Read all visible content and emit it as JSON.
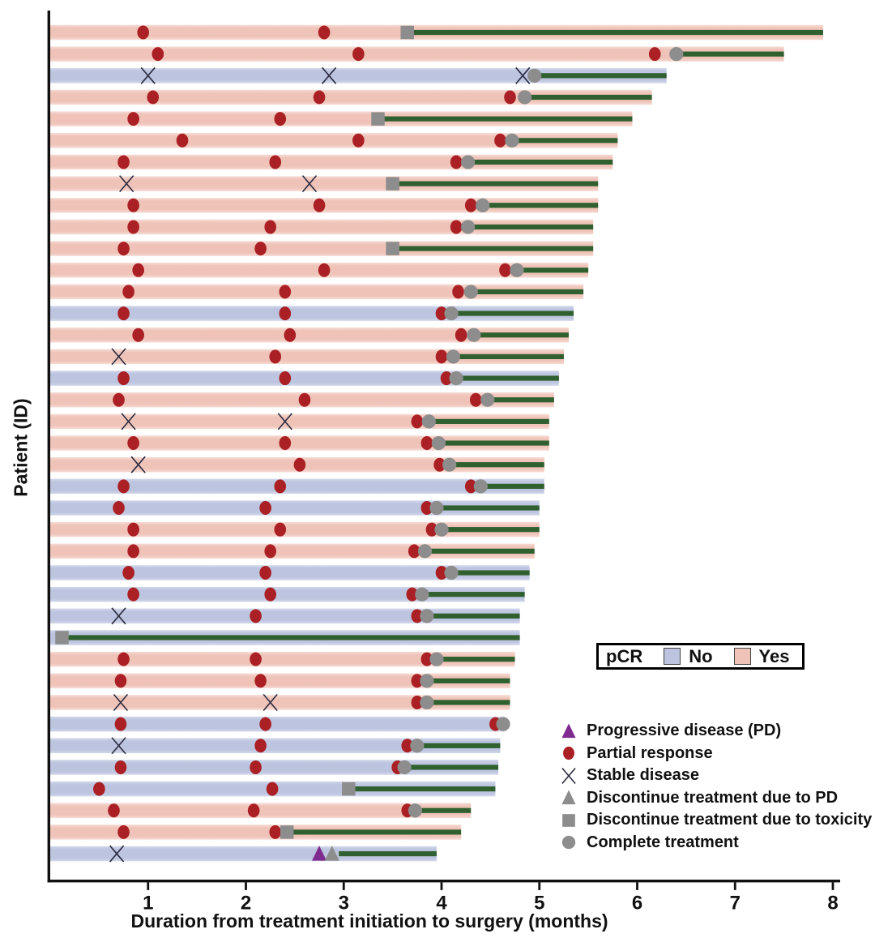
{
  "figure": {
    "x_axis": {
      "label": "Duration from treatment initiation to surgery (months)",
      "ticks": [
        1,
        2,
        3,
        4,
        5,
        6,
        7,
        8
      ],
      "min": 0,
      "max": 8
    },
    "y_axis": {
      "label": "Patient (ID)"
    }
  },
  "pcr_legend": {
    "title": "pCR",
    "no_label": "No",
    "yes_label": "Yes"
  },
  "marker_legend": [
    {
      "type": "pd",
      "label": "Progressive disease (PD)"
    },
    {
      "type": "pr",
      "label": "Partial response"
    },
    {
      "type": "sd",
      "label": "Stable disease"
    },
    {
      "type": "dpd",
      "label": "Discontinue treatment due to PD"
    },
    {
      "type": "dtox",
      "label": "Discontinue treatment due to toxicity"
    },
    {
      "type": "ct",
      "label": "Complete treatment"
    }
  ],
  "colors": {
    "pcr_yes": "#efc3b8",
    "pcr_yes_edge": "#f6dcd5",
    "pcr_no": "#bcc4df",
    "pcr_no_edge": "#d2d8ea",
    "partial_response": "#aa2024",
    "gray_marker": "#8d8d8d",
    "progressive": "#7e2a8e",
    "stable_x": "#2b2b40",
    "post_line": "#30602f",
    "axis": "#111111"
  },
  "chart_data": {
    "type": "bar",
    "orientation": "horizontal-swimmer",
    "x_unit": "months",
    "xlim": [
      0,
      8
    ],
    "title": "",
    "xlabel": "Duration from treatment initiation to surgery (months)",
    "ylabel": "Patient (ID)",
    "event_types": {
      "pd": "Progressive disease (PD)",
      "pr": "Partial response",
      "sd": "Stable disease",
      "dpd": "Discontinue treatment due to PD",
      "dtox": "Discontinue treatment due to toxicity",
      "ct": "Complete treatment"
    },
    "patients": [
      {
        "pcr": "Yes",
        "end": 7.9,
        "events": [
          [
            "pr",
            0.95
          ],
          [
            "pr",
            2.8
          ],
          [
            "dtox",
            3.65
          ]
        ],
        "line": [
          3.65,
          7.9
        ]
      },
      {
        "pcr": "Yes",
        "end": 7.5,
        "events": [
          [
            "pr",
            1.1
          ],
          [
            "pr",
            3.15
          ],
          [
            "pr",
            6.18
          ],
          [
            "ct",
            6.4
          ]
        ],
        "line": [
          6.4,
          7.5
        ]
      },
      {
        "pcr": "No",
        "end": 6.3,
        "events": [
          [
            "sd",
            1.0
          ],
          [
            "sd",
            2.85
          ],
          [
            "sd",
            4.83
          ],
          [
            "ct",
            4.95
          ]
        ],
        "line": [
          4.95,
          6.3
        ]
      },
      {
        "pcr": "Yes",
        "end": 6.15,
        "events": [
          [
            "pr",
            1.05
          ],
          [
            "pr",
            2.75
          ],
          [
            "pr",
            4.7
          ],
          [
            "ct",
            4.85
          ]
        ],
        "line": [
          4.85,
          6.15
        ]
      },
      {
        "pcr": "Yes",
        "end": 5.95,
        "events": [
          [
            "pr",
            0.85
          ],
          [
            "pr",
            2.35
          ],
          [
            "dtox",
            3.35
          ]
        ],
        "line": [
          3.35,
          5.95
        ]
      },
      {
        "pcr": "Yes",
        "end": 5.8,
        "events": [
          [
            "pr",
            1.35
          ],
          [
            "pr",
            3.15
          ],
          [
            "pr",
            4.6
          ],
          [
            "ct",
            4.72
          ]
        ],
        "line": [
          4.72,
          5.8
        ]
      },
      {
        "pcr": "Yes",
        "end": 5.75,
        "events": [
          [
            "pr",
            0.75
          ],
          [
            "pr",
            2.3
          ],
          [
            "pr",
            4.15
          ],
          [
            "ct",
            4.27
          ]
        ],
        "line": [
          4.27,
          5.75
        ]
      },
      {
        "pcr": "Yes",
        "end": 5.6,
        "events": [
          [
            "sd",
            0.78
          ],
          [
            "sd",
            2.65
          ],
          [
            "dtox",
            3.5
          ]
        ],
        "line": [
          3.5,
          5.6
        ]
      },
      {
        "pcr": "Yes",
        "end": 5.6,
        "events": [
          [
            "pr",
            0.85
          ],
          [
            "pr",
            2.75
          ],
          [
            "pr",
            4.3
          ],
          [
            "ct",
            4.42
          ]
        ],
        "line": [
          4.42,
          5.6
        ]
      },
      {
        "pcr": "Yes",
        "end": 5.55,
        "events": [
          [
            "pr",
            0.85
          ],
          [
            "pr",
            2.25
          ],
          [
            "pr",
            4.15
          ],
          [
            "ct",
            4.27
          ]
        ],
        "line": [
          4.27,
          5.55
        ]
      },
      {
        "pcr": "Yes",
        "end": 5.55,
        "events": [
          [
            "pr",
            0.75
          ],
          [
            "pr",
            2.15
          ],
          [
            "dtox",
            3.5
          ]
        ],
        "line": [
          3.5,
          5.55
        ]
      },
      {
        "pcr": "Yes",
        "end": 5.5,
        "events": [
          [
            "pr",
            0.9
          ],
          [
            "pr",
            2.8
          ],
          [
            "pr",
            4.65
          ],
          [
            "ct",
            4.77
          ]
        ],
        "line": [
          4.77,
          5.5
        ]
      },
      {
        "pcr": "Yes",
        "end": 5.45,
        "events": [
          [
            "pr",
            0.8
          ],
          [
            "pr",
            2.4
          ],
          [
            "pr",
            4.17
          ],
          [
            "ct",
            4.3
          ]
        ],
        "line": [
          4.3,
          5.45
        ]
      },
      {
        "pcr": "No",
        "end": 5.35,
        "events": [
          [
            "pr",
            0.75
          ],
          [
            "pr",
            2.4
          ],
          [
            "pr",
            4.0
          ],
          [
            "ct",
            4.1
          ]
        ],
        "line": [
          4.1,
          5.35
        ]
      },
      {
        "pcr": "Yes",
        "end": 5.3,
        "events": [
          [
            "pr",
            0.9
          ],
          [
            "pr",
            2.45
          ],
          [
            "pr",
            4.2
          ],
          [
            "ct",
            4.33
          ]
        ],
        "line": [
          4.33,
          5.3
        ]
      },
      {
        "pcr": "Yes",
        "end": 5.25,
        "events": [
          [
            "sd",
            0.7
          ],
          [
            "pr",
            2.3
          ],
          [
            "pr",
            4.0
          ],
          [
            "ct",
            4.12
          ]
        ],
        "line": [
          4.12,
          5.25
        ]
      },
      {
        "pcr": "No",
        "end": 5.2,
        "events": [
          [
            "pr",
            0.75
          ],
          [
            "pr",
            2.4
          ],
          [
            "pr",
            4.05
          ],
          [
            "ct",
            4.15
          ]
        ],
        "line": [
          4.15,
          5.2
        ]
      },
      {
        "pcr": "Yes",
        "end": 5.15,
        "events": [
          [
            "pr",
            0.7
          ],
          [
            "pr",
            2.6
          ],
          [
            "pr",
            4.35
          ],
          [
            "ct",
            4.47
          ]
        ],
        "line": [
          4.47,
          5.15
        ]
      },
      {
        "pcr": "Yes",
        "end": 5.1,
        "events": [
          [
            "sd",
            0.8
          ],
          [
            "sd",
            2.4
          ],
          [
            "pr",
            3.75
          ],
          [
            "ct",
            3.87
          ]
        ],
        "line": [
          3.87,
          5.1
        ]
      },
      {
        "pcr": "Yes",
        "end": 5.1,
        "events": [
          [
            "pr",
            0.85
          ],
          [
            "pr",
            2.4
          ],
          [
            "pr",
            3.85
          ],
          [
            "ct",
            3.97
          ]
        ],
        "line": [
          3.97,
          5.1
        ]
      },
      {
        "pcr": "Yes",
        "end": 5.05,
        "events": [
          [
            "sd",
            0.9
          ],
          [
            "pr",
            2.55
          ],
          [
            "pr",
            3.98
          ],
          [
            "ct",
            4.08
          ]
        ],
        "line": [
          4.08,
          5.05
        ]
      },
      {
        "pcr": "No",
        "end": 5.05,
        "events": [
          [
            "pr",
            0.75
          ],
          [
            "pr",
            2.35
          ],
          [
            "pr",
            4.3
          ],
          [
            "ct",
            4.4
          ]
        ],
        "line": [
          4.4,
          5.05
        ]
      },
      {
        "pcr": "No",
        "end": 5.0,
        "events": [
          [
            "pr",
            0.7
          ],
          [
            "pr",
            2.2
          ],
          [
            "pr",
            3.85
          ],
          [
            "ct",
            3.95
          ]
        ],
        "line": [
          3.95,
          5.0
        ]
      },
      {
        "pcr": "Yes",
        "end": 5.0,
        "events": [
          [
            "pr",
            0.85
          ],
          [
            "pr",
            2.35
          ],
          [
            "pr",
            3.9
          ],
          [
            "ct",
            4.0
          ]
        ],
        "line": [
          4.0,
          5.0
        ]
      },
      {
        "pcr": "Yes",
        "end": 4.95,
        "events": [
          [
            "pr",
            0.85
          ],
          [
            "pr",
            2.25
          ],
          [
            "pr",
            3.72
          ],
          [
            "ct",
            3.83
          ]
        ],
        "line": [
          3.83,
          4.95
        ]
      },
      {
        "pcr": "No",
        "end": 4.9,
        "events": [
          [
            "pr",
            0.8
          ],
          [
            "pr",
            2.2
          ],
          [
            "pr",
            4.0
          ],
          [
            "ct",
            4.1
          ]
        ],
        "line": [
          4.1,
          4.9
        ]
      },
      {
        "pcr": "No",
        "end": 4.85,
        "events": [
          [
            "pr",
            0.85
          ],
          [
            "pr",
            2.25
          ],
          [
            "pr",
            3.7
          ],
          [
            "ct",
            3.8
          ]
        ],
        "line": [
          3.8,
          4.85
        ]
      },
      {
        "pcr": "No",
        "end": 4.8,
        "events": [
          [
            "sd",
            0.7
          ],
          [
            "pr",
            2.1
          ],
          [
            "pr",
            3.75
          ],
          [
            "ct",
            3.85
          ]
        ],
        "line": [
          3.85,
          4.8
        ]
      },
      {
        "pcr": "No",
        "end": 4.8,
        "events": [
          [
            "dtox",
            0.12
          ]
        ],
        "line": [
          0.12,
          4.8
        ]
      },
      {
        "pcr": "Yes",
        "end": 4.75,
        "events": [
          [
            "pr",
            0.75
          ],
          [
            "pr",
            2.1
          ],
          [
            "pr",
            3.85
          ],
          [
            "ct",
            3.95
          ]
        ],
        "line": [
          3.95,
          4.75
        ]
      },
      {
        "pcr": "Yes",
        "end": 4.7,
        "events": [
          [
            "pr",
            0.72
          ],
          [
            "pr",
            2.15
          ],
          [
            "pr",
            3.75
          ],
          [
            "ct",
            3.85
          ]
        ],
        "line": [
          3.85,
          4.7
        ]
      },
      {
        "pcr": "Yes",
        "end": 4.7,
        "events": [
          [
            "sd",
            0.72
          ],
          [
            "sd",
            2.25
          ],
          [
            "pr",
            3.75
          ],
          [
            "ct",
            3.85
          ]
        ],
        "line": [
          3.85,
          4.7
        ]
      },
      {
        "pcr": "No",
        "end": 4.65,
        "events": [
          [
            "pr",
            0.72
          ],
          [
            "pr",
            2.2
          ],
          [
            "pr",
            4.55
          ],
          [
            "ct",
            4.63
          ]
        ],
        "line": [
          4.63,
          4.65
        ]
      },
      {
        "pcr": "No",
        "end": 4.6,
        "events": [
          [
            "sd",
            0.7
          ],
          [
            "pr",
            2.15
          ],
          [
            "pr",
            3.65
          ],
          [
            "ct",
            3.75
          ]
        ],
        "line": [
          3.75,
          4.6
        ]
      },
      {
        "pcr": "No",
        "end": 4.58,
        "events": [
          [
            "pr",
            0.72
          ],
          [
            "pr",
            2.1
          ],
          [
            "pr",
            3.55
          ],
          [
            "ct",
            3.62
          ]
        ],
        "line": [
          3.62,
          4.58
        ]
      },
      {
        "pcr": "No",
        "end": 4.55,
        "events": [
          [
            "pr",
            0.5
          ],
          [
            "pr",
            2.27
          ],
          [
            "dtox",
            3.05
          ]
        ],
        "line": [
          3.05,
          4.55
        ]
      },
      {
        "pcr": "Yes",
        "end": 4.3,
        "events": [
          [
            "pr",
            0.65
          ],
          [
            "pr",
            2.08
          ],
          [
            "pr",
            3.65
          ],
          [
            "ct",
            3.73
          ]
        ],
        "line": [
          3.73,
          4.3
        ]
      },
      {
        "pcr": "Yes",
        "end": 4.2,
        "events": [
          [
            "pr",
            0.75
          ],
          [
            "pr",
            2.3
          ],
          [
            "dtox",
            2.42
          ]
        ],
        "line": [
          2.42,
          4.2
        ]
      },
      {
        "pcr": "No",
        "end": 3.95,
        "events": [
          [
            "sd",
            0.68
          ],
          [
            "pd",
            2.75
          ],
          [
            "dpd",
            2.88
          ]
        ],
        "line": [
          2.95,
          3.95
        ]
      }
    ]
  }
}
